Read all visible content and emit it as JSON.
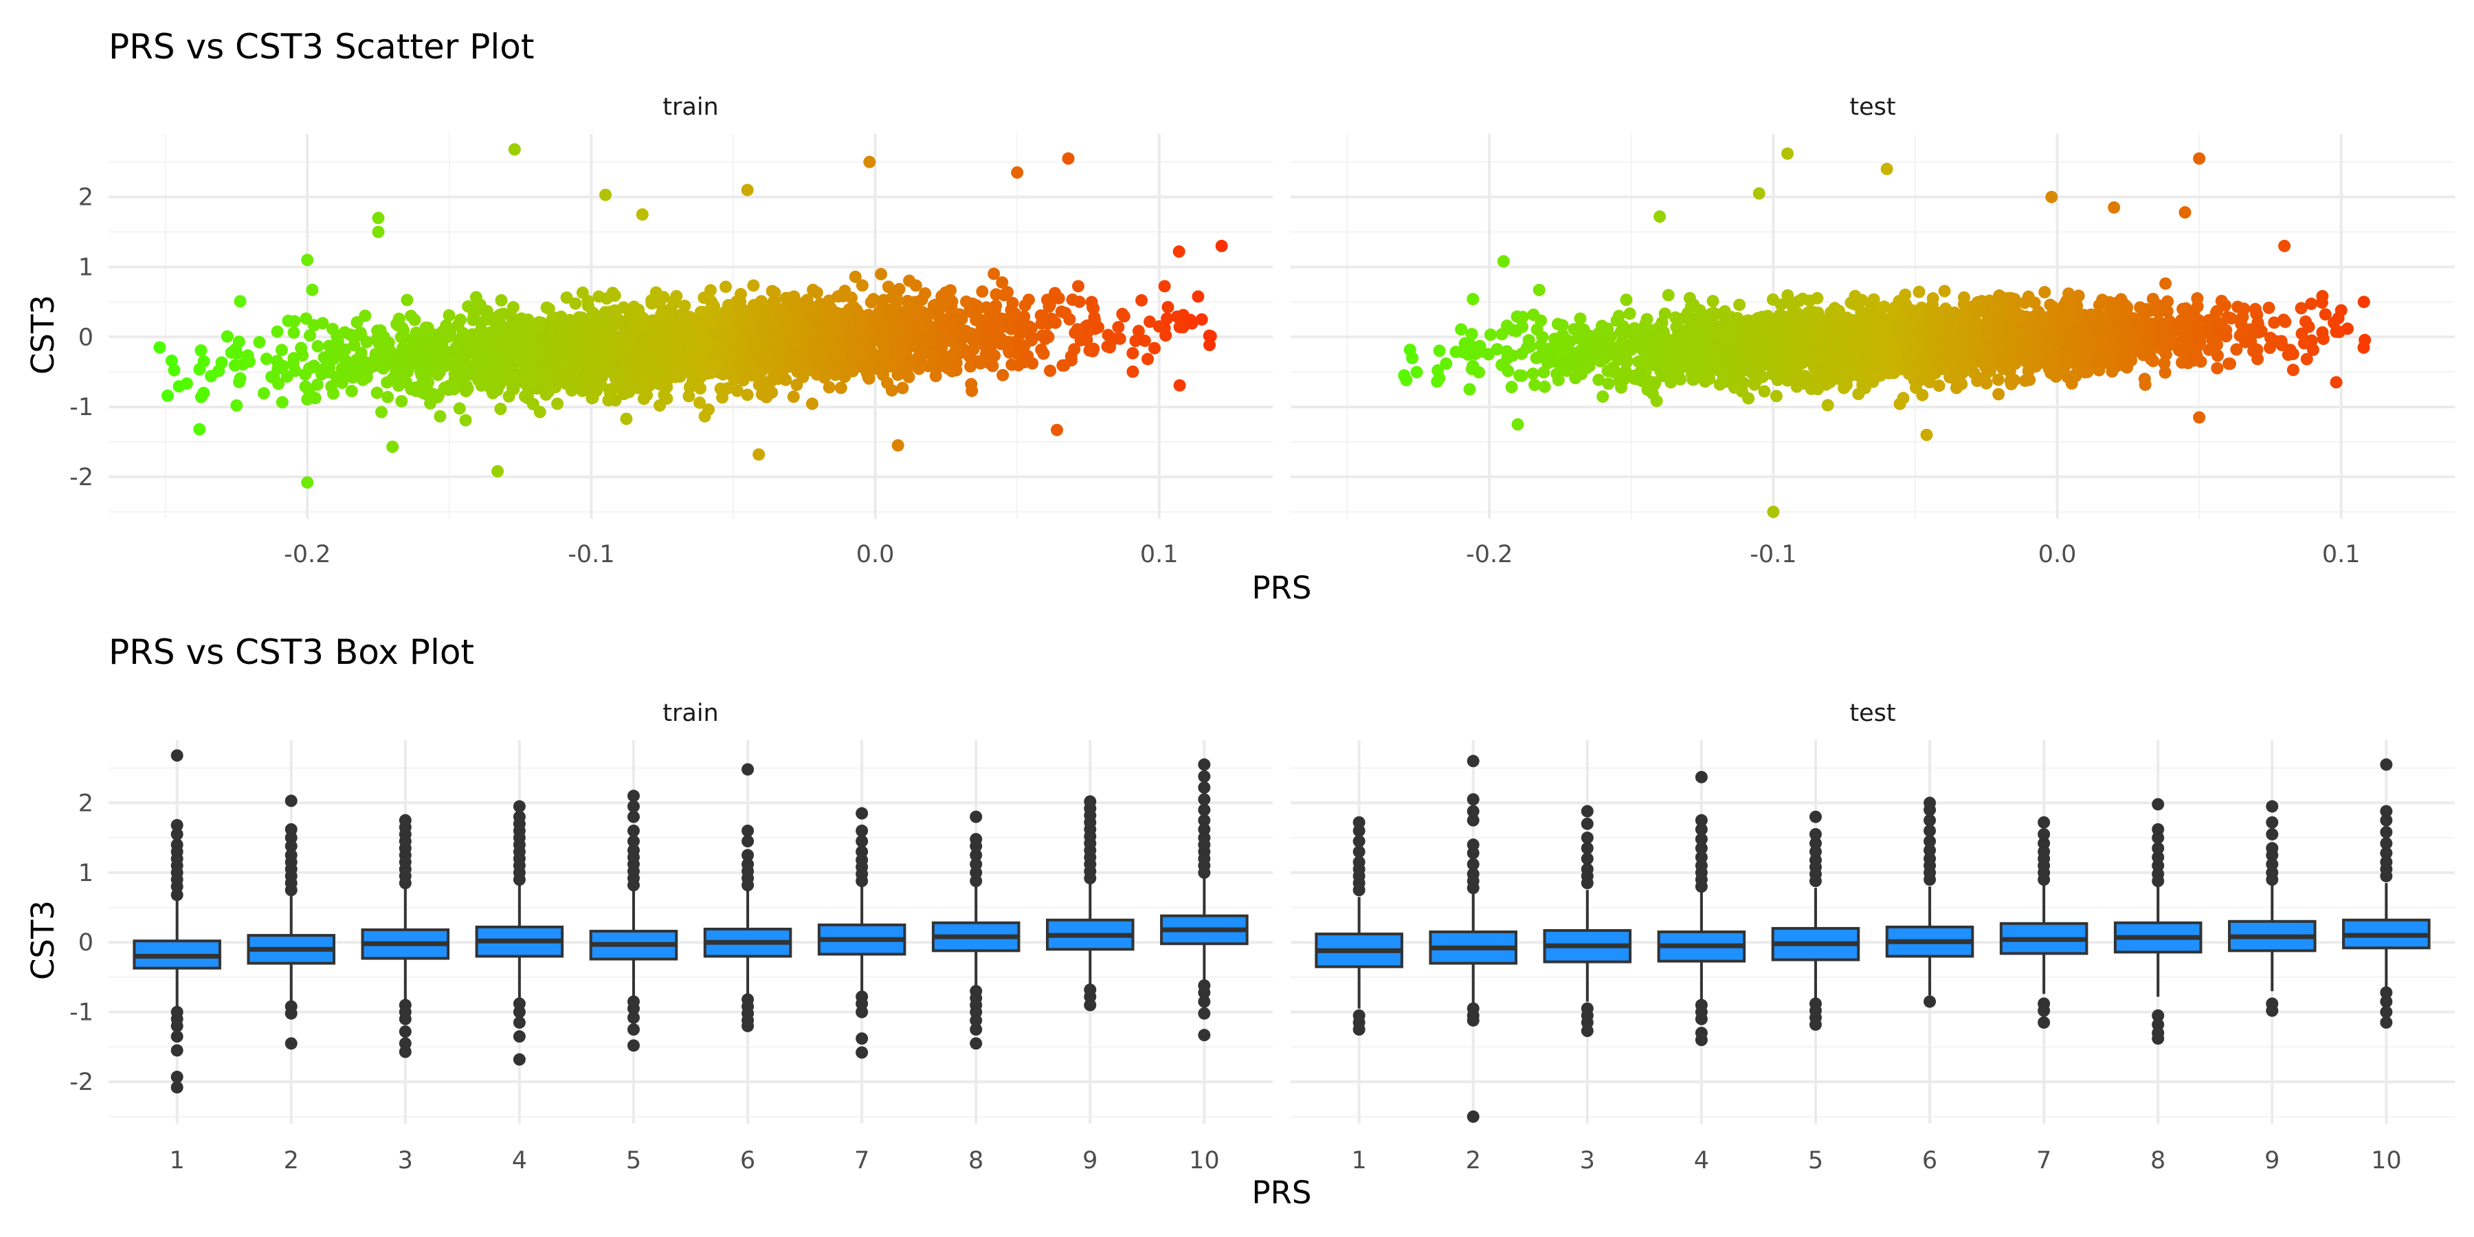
{
  "figure": {
    "scatter_title": "PRS vs CST3 Scatter Plot",
    "box_title": "PRS vs CST3 Box Plot"
  },
  "colors": {
    "gradient_low": "#4cff00",
    "gradient_mid": "#c8b400",
    "gradient_high": "#ff2a00",
    "box_fill": "#1e90ff",
    "box_line": "#333333",
    "outlier": "#333333"
  },
  "chart_data": [
    {
      "type": "scatter",
      "title": "PRS vs CST3 Scatter Plot",
      "xlabel": "PRS",
      "ylabel": "CST3",
      "color_by": "PRS",
      "xlim": [
        -0.27,
        0.14
      ],
      "ylim": [
        -2.6,
        2.9
      ],
      "x_ticks": [
        -0.2,
        -0.1,
        0.0,
        0.1
      ],
      "x_tick_labels": [
        "-0.2",
        "-0.1",
        "0.0",
        "0.1"
      ],
      "y_ticks": [
        -2,
        -1,
        0,
        1,
        2
      ],
      "y_tick_labels": [
        "-2",
        "-1",
        "0",
        "1",
        "2"
      ],
      "grid": true,
      "legend": "none",
      "panels": [
        {
          "name": "train",
          "x_range": [
            -0.25,
            0.12
          ],
          "bulk": {
            "slope": 2.0,
            "intercept": 0.0,
            "sd": 0.3
          },
          "outliers": [
            {
              "x": -0.252,
              "y": -0.15
            },
            {
              "x": -0.238,
              "y": -1.32
            },
            {
              "x": -0.2,
              "y": -2.08
            },
            {
              "x": -0.2,
              "y": 1.1
            },
            {
              "x": -0.175,
              "y": 1.7
            },
            {
              "x": -0.175,
              "y": 1.5
            },
            {
              "x": -0.17,
              "y": -1.57
            },
            {
              "x": -0.133,
              "y": -1.92
            },
            {
              "x": -0.127,
              "y": 2.68
            },
            {
              "x": -0.095,
              "y": 2.03
            },
            {
              "x": -0.082,
              "y": 1.75
            },
            {
              "x": -0.045,
              "y": 2.1
            },
            {
              "x": -0.041,
              "y": -1.68
            },
            {
              "x": -0.002,
              "y": 2.5
            },
            {
              "x": 0.008,
              "y": -1.55
            },
            {
              "x": 0.05,
              "y": 2.35
            },
            {
              "x": 0.064,
              "y": -1.33
            },
            {
              "x": 0.068,
              "y": 2.55
            },
            {
              "x": 0.107,
              "y": 1.22
            },
            {
              "x": 0.122,
              "y": 1.3
            },
            {
              "x": 0.115,
              "y": 0.25
            },
            {
              "x": 0.1,
              "y": 0.15
            }
          ]
        },
        {
          "name": "test",
          "x_range": [
            -0.23,
            0.11
          ],
          "bulk": {
            "slope": 1.4,
            "intercept": 0.0,
            "sd": 0.26
          },
          "outliers": [
            {
              "x": -0.23,
              "y": -0.55
            },
            {
              "x": -0.195,
              "y": 1.08
            },
            {
              "x": -0.19,
              "y": -1.25
            },
            {
              "x": -0.14,
              "y": 1.72
            },
            {
              "x": -0.1,
              "y": -2.5
            },
            {
              "x": -0.105,
              "y": 2.05
            },
            {
              "x": -0.095,
              "y": 2.62
            },
            {
              "x": -0.06,
              "y": 2.4
            },
            {
              "x": -0.046,
              "y": -1.4
            },
            {
              "x": -0.002,
              "y": 2.0
            },
            {
              "x": 0.02,
              "y": 1.85
            },
            {
              "x": 0.045,
              "y": 1.78
            },
            {
              "x": 0.05,
              "y": 2.55
            },
            {
              "x": 0.05,
              "y": -1.15
            },
            {
              "x": 0.08,
              "y": 1.3
            },
            {
              "x": 0.1,
              "y": 0.38
            },
            {
              "x": 0.108,
              "y": 0.5
            }
          ]
        }
      ]
    },
    {
      "type": "box",
      "title": "PRS vs CST3 Box Plot",
      "xlabel": "PRS",
      "ylabel": "CST3",
      "categories": [
        "1",
        "2",
        "3",
        "4",
        "5",
        "6",
        "7",
        "8",
        "9",
        "10"
      ],
      "ylim": [
        -2.6,
        2.9
      ],
      "y_ticks": [
        -2,
        -1,
        0,
        1,
        2
      ],
      "y_tick_labels": [
        "-2",
        "-1",
        "0",
        "1",
        "2"
      ],
      "grid": true,
      "legend": "none",
      "panels": [
        {
          "name": "train",
          "boxes": [
            {
              "q1": -0.37,
              "median": -0.2,
              "q3": 0.02,
              "wmin": -0.95,
              "wmax": 0.6,
              "outliers": [
                0.68,
                0.8,
                0.9,
                1.0,
                1.1,
                1.2,
                1.3,
                1.4,
                1.55,
                1.68,
                2.68,
                -1.0,
                -1.1,
                -1.2,
                -1.35,
                -1.55,
                -1.93,
                -2.08
              ]
            },
            {
              "q1": -0.3,
              "median": -0.1,
              "q3": 0.1,
              "wmin": -0.87,
              "wmax": 0.68,
              "outliers": [
                0.75,
                0.85,
                0.95,
                1.05,
                1.15,
                1.25,
                1.38,
                1.5,
                1.62,
                2.03,
                -0.92,
                -1.02,
                -1.45
              ]
            },
            {
              "q1": -0.23,
              "median": -0.02,
              "q3": 0.18,
              "wmin": -0.83,
              "wmax": 0.77,
              "outliers": [
                0.85,
                0.95,
                1.05,
                1.15,
                1.25,
                1.35,
                1.45,
                1.55,
                1.65,
                1.75,
                -0.9,
                -1.0,
                -1.1,
                -1.28,
                -1.45,
                -1.57
              ]
            },
            {
              "q1": -0.2,
              "median": 0.02,
              "q3": 0.22,
              "wmin": -0.8,
              "wmax": 0.83,
              "outliers": [
                0.9,
                1.0,
                1.1,
                1.2,
                1.3,
                1.4,
                1.5,
                1.6,
                1.7,
                1.8,
                1.95,
                -0.88,
                -1.0,
                -1.15,
                -1.35,
                -1.68
              ]
            },
            {
              "q1": -0.24,
              "median": -0.03,
              "q3": 0.16,
              "wmin": -0.78,
              "wmax": 0.75,
              "outliers": [
                0.82,
                0.92,
                1.02,
                1.12,
                1.22,
                1.32,
                1.45,
                1.6,
                1.8,
                1.95,
                2.1,
                -0.85,
                -0.95,
                -1.08,
                -1.25,
                -1.48
              ]
            },
            {
              "q1": -0.2,
              "median": 0.0,
              "q3": 0.19,
              "wmin": -0.75,
              "wmax": 0.75,
              "outliers": [
                0.82,
                0.92,
                1.02,
                1.12,
                1.25,
                1.45,
                1.6,
                2.48,
                -0.82,
                -0.92,
                -1.02,
                -1.12,
                -1.2
              ]
            },
            {
              "q1": -0.17,
              "median": 0.04,
              "q3": 0.25,
              "wmin": -0.72,
              "wmax": 0.8,
              "outliers": [
                0.88,
                0.98,
                1.08,
                1.18,
                1.3,
                1.45,
                1.6,
                1.85,
                -0.78,
                -0.88,
                -1.0,
                -1.38,
                -1.58
              ]
            },
            {
              "q1": -0.12,
              "median": 0.08,
              "q3": 0.28,
              "wmin": -0.63,
              "wmax": 0.8,
              "outliers": [
                0.88,
                1.0,
                1.12,
                1.25,
                1.38,
                1.48,
                1.8,
                -0.7,
                -0.8,
                -0.9,
                -1.0,
                -1.12,
                -1.25,
                -1.45
              ]
            },
            {
              "q1": -0.1,
              "median": 0.1,
              "q3": 0.32,
              "wmin": -0.62,
              "wmax": 0.85,
              "outliers": [
                0.92,
                1.02,
                1.12,
                1.22,
                1.32,
                1.42,
                1.52,
                1.62,
                1.72,
                1.82,
                1.92,
                2.02,
                -0.68,
                -0.78,
                -0.9
              ]
            },
            {
              "q1": -0.02,
              "median": 0.18,
              "q3": 0.38,
              "wmin": -0.55,
              "wmax": 0.92,
              "outliers": [
                1.0,
                1.1,
                1.2,
                1.3,
                1.4,
                1.5,
                1.62,
                1.75,
                1.9,
                2.05,
                2.22,
                2.38,
                2.55,
                -0.62,
                -0.72,
                -0.85,
                -1.02,
                -1.33
              ]
            }
          ]
        },
        {
          "name": "test",
          "boxes": [
            {
              "q1": -0.35,
              "median": -0.12,
              "q3": 0.12,
              "wmin": -0.95,
              "wmax": 0.65,
              "outliers": [
                0.75,
                0.85,
                0.95,
                1.05,
                1.15,
                1.3,
                1.45,
                1.6,
                1.72,
                -1.05,
                -1.15,
                -1.25
              ]
            },
            {
              "q1": -0.3,
              "median": -0.08,
              "q3": 0.15,
              "wmin": -0.9,
              "wmax": 0.7,
              "outliers": [
                0.78,
                0.88,
                0.98,
                1.12,
                1.28,
                1.4,
                1.75,
                1.88,
                2.05,
                2.6,
                -0.95,
                -1.05,
                -1.12,
                -2.5
              ]
            },
            {
              "q1": -0.28,
              "median": -0.05,
              "q3": 0.17,
              "wmin": -0.85,
              "wmax": 0.75,
              "outliers": [
                0.85,
                0.95,
                1.05,
                1.2,
                1.35,
                1.5,
                1.7,
                1.88,
                -0.95,
                -1.05,
                -1.15,
                -1.27
              ]
            },
            {
              "q1": -0.27,
              "median": -0.05,
              "q3": 0.15,
              "wmin": -0.82,
              "wmax": 0.72,
              "outliers": [
                0.8,
                0.9,
                1.0,
                1.1,
                1.22,
                1.35,
                1.48,
                1.62,
                1.75,
                2.37,
                -0.9,
                -1.0,
                -1.1,
                -1.3,
                -1.4
              ]
            },
            {
              "q1": -0.25,
              "median": -0.02,
              "q3": 0.2,
              "wmin": -0.8,
              "wmax": 0.78,
              "outliers": [
                0.88,
                0.98,
                1.08,
                1.18,
                1.3,
                1.42,
                1.55,
                1.8,
                -0.88,
                -0.98,
                -1.08,
                -1.18
              ]
            },
            {
              "q1": -0.2,
              "median": 0.01,
              "q3": 0.22,
              "wmin": -0.76,
              "wmax": 0.8,
              "outliers": [
                0.9,
                1.0,
                1.1,
                1.2,
                1.32,
                1.45,
                1.6,
                1.75,
                1.9,
                2.0,
                -0.85
              ]
            },
            {
              "q1": -0.16,
              "median": 0.04,
              "q3": 0.27,
              "wmin": -0.74,
              "wmax": 0.82,
              "outliers": [
                0.9,
                1.0,
                1.1,
                1.2,
                1.3,
                1.42,
                1.55,
                1.72,
                -0.88,
                -0.98,
                -1.15
              ]
            },
            {
              "q1": -0.14,
              "median": 0.07,
              "q3": 0.28,
              "wmin": -0.78,
              "wmax": 0.8,
              "outliers": [
                0.88,
                0.98,
                1.1,
                1.22,
                1.35,
                1.5,
                1.62,
                1.98,
                -1.05,
                -1.18,
                -1.3,
                -1.38
              ]
            },
            {
              "q1": -0.12,
              "median": 0.08,
              "q3": 0.3,
              "wmin": -0.7,
              "wmax": 0.82,
              "outliers": [
                0.9,
                1.0,
                1.12,
                1.25,
                1.35,
                1.55,
                1.72,
                1.95,
                -0.88,
                -0.98
              ]
            },
            {
              "q1": -0.08,
              "median": 0.1,
              "q3": 0.32,
              "wmin": -0.65,
              "wmax": 0.85,
              "outliers": [
                0.95,
                1.05,
                1.15,
                1.28,
                1.42,
                1.58,
                1.75,
                1.88,
                2.55,
                -0.72,
                -0.85,
                -1.0,
                -1.15
              ]
            }
          ]
        }
      ]
    }
  ]
}
